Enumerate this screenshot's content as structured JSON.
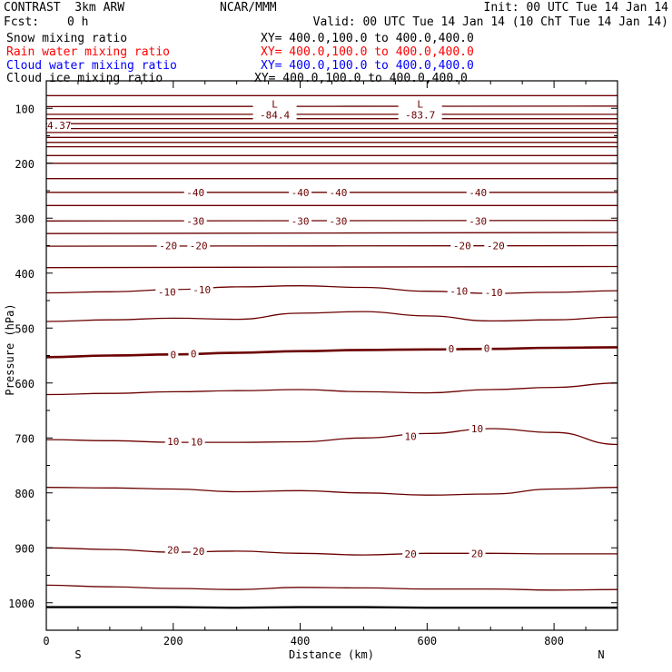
{
  "header": {
    "title_left": "CONTRAST  3km ARW",
    "title_center": "NCAR/MMM",
    "init": "Init: 00 UTC Tue 14 Jan 14",
    "fcst_label": "Fcst:",
    "fcst_value": "0 h",
    "valid": "Valid: 00 UTC Tue 14 Jan 14 (10 ChT Tue 14 Jan 14)",
    "fields": [
      {
        "name": "Snow mixing ratio",
        "xy": "XY= 400.0,100.0 to 400.0,400.0",
        "color": "#000000"
      },
      {
        "name": "Rain water mixing ratio",
        "xy": "XY= 400.0,100.0 to 400.0,400.0",
        "color": "#ff0000"
      },
      {
        "name": "Cloud water mixing ratio",
        "xy": "XY= 400.0,100.0 to 400.0,400.0",
        "color": "#0000ff"
      },
      {
        "name": "Cloud ice mixing ratio",
        "xy": "XY= 400.0,100.0 to 400.0,400.0",
        "color": "#000000"
      }
    ]
  },
  "colors": {
    "contour": "#6b0000",
    "surface": "#000000",
    "frame": "#000000"
  },
  "chart_data": {
    "type": "line",
    "xlabel": "Distance (km)",
    "ylabel": "Pressure (hPa)",
    "xlim": [
      0,
      900
    ],
    "ylim": [
      1050,
      50
    ],
    "x_ticks": [
      0,
      200,
      400,
      600,
      800
    ],
    "y_ticks": [
      100,
      200,
      300,
      400,
      500,
      600,
      700,
      800,
      900,
      1000
    ],
    "direction_left": "S",
    "direction_right": "N",
    "x_tick_labels": [
      "0",
      "200",
      "400",
      "600",
      "800"
    ],
    "y_tick_labels": [
      "100",
      "200",
      "300",
      "400",
      "500",
      "600",
      "700",
      "800",
      "900",
      "1000"
    ],
    "contours": [
      {
        "p": [
          77,
          77
        ]
      },
      {
        "p": [
          97,
          96
        ]
      },
      {
        "p": [
          111,
          111
        ]
      },
      {
        "p": [
          119,
          119
        ]
      },
      {
        "p": [
          128,
          128
        ]
      },
      {
        "p": [
          137,
          137
        ]
      },
      {
        "p": [
          144,
          144
        ]
      },
      {
        "p": [
          153,
          153
        ]
      },
      {
        "p": [
          162,
          162
        ]
      },
      {
        "p": [
          170,
          170
        ]
      },
      {
        "p": [
          186,
          186
        ]
      },
      {
        "p": [
          200,
          200
        ]
      },
      {
        "p": [
          228,
          228
        ]
      },
      {
        "p": [
          253,
          253
        ]
      },
      {
        "p": [
          277,
          277
        ]
      },
      {
        "p": [
          305,
          304
        ]
      },
      {
        "p": [
          328,
          326
        ]
      },
      {
        "p": [
          351,
          350
        ]
      },
      {
        "p": [
          390,
          388
        ]
      },
      {
        "p": [
          436,
          434,
          430,
          425,
          423,
          426,
          433,
          437,
          435,
          432
        ]
      },
      {
        "p": [
          488,
          485,
          482,
          484,
          473,
          470,
          478,
          487,
          485,
          480
        ]
      },
      {
        "p": [
          553,
          550,
          548,
          545,
          542,
          540,
          539,
          538,
          536,
          535
        ],
        "thick": true
      },
      {
        "p": [
          621,
          619,
          616,
          614,
          612,
          616,
          618,
          612,
          608,
          600
        ]
      },
      {
        "p": [
          703,
          705,
          708,
          708,
          707,
          700,
          692,
          683,
          690,
          712
        ]
      },
      {
        "p": [
          790,
          791,
          793,
          798,
          796,
          800,
          804,
          802,
          793,
          790
        ]
      },
      {
        "p": [
          900,
          903,
          908,
          906,
          910,
          913,
          910,
          910,
          911,
          911
        ]
      },
      {
        "p": [
          968,
          971,
          974,
          976,
          972,
          973,
          975,
          975,
          977,
          976
        ]
      }
    ],
    "surface_p": [
      1008,
      1008,
      1008,
      1009,
      1008,
      1008,
      1009,
      1009,
      1009,
      1009
    ],
    "contour_labels": [
      {
        "text": "-40",
        "x": 235,
        "p": 253
      },
      {
        "text": "-40",
        "x": 400,
        "p": 253
      },
      {
        "text": "-40",
        "x": 460,
        "p": 253
      },
      {
        "text": "-40",
        "x": 680,
        "p": 253
      },
      {
        "text": "-30",
        "x": 235,
        "p": 305
      },
      {
        "text": "-30",
        "x": 400,
        "p": 305
      },
      {
        "text": "-30",
        "x": 460,
        "p": 305
      },
      {
        "text": "-30",
        "x": 680,
        "p": 305
      },
      {
        "text": "-20",
        "x": 192,
        "p": 350
      },
      {
        "text": "-20",
        "x": 240,
        "p": 350
      },
      {
        "text": "-20",
        "x": 655,
        "p": 350
      },
      {
        "text": "-20",
        "x": 708,
        "p": 350
      },
      {
        "text": "-10",
        "x": 190,
        "p": 434
      },
      {
        "text": "-10",
        "x": 245,
        "p": 430
      },
      {
        "text": "-10",
        "x": 650,
        "p": 433
      },
      {
        "text": "-10",
        "x": 705,
        "p": 435
      },
      {
        "text": "0",
        "x": 200,
        "p": 548
      },
      {
        "text": "0",
        "x": 232,
        "p": 547
      },
      {
        "text": "0",
        "x": 638,
        "p": 538
      },
      {
        "text": "0",
        "x": 694,
        "p": 537
      },
      {
        "text": "10",
        "x": 200,
        "p": 706
      },
      {
        "text": "10",
        "x": 237,
        "p": 707
      },
      {
        "text": "10",
        "x": 574,
        "p": 697
      },
      {
        "text": "10",
        "x": 679,
        "p": 683
      },
      {
        "text": "20",
        "x": 200,
        "p": 904
      },
      {
        "text": "20",
        "x": 240,
        "p": 906
      },
      {
        "text": "20",
        "x": 574,
        "p": 911
      },
      {
        "text": "20",
        "x": 679,
        "p": 910
      }
    ],
    "extrema": [
      {
        "symbol": "L",
        "value": "-84.4",
        "x": 360,
        "p": 77
      },
      {
        "symbol": "L",
        "value": "-83.7",
        "x": 589,
        "p": 77
      }
    ],
    "edge_label": {
      "text": "4.37",
      "p": 111
    }
  }
}
